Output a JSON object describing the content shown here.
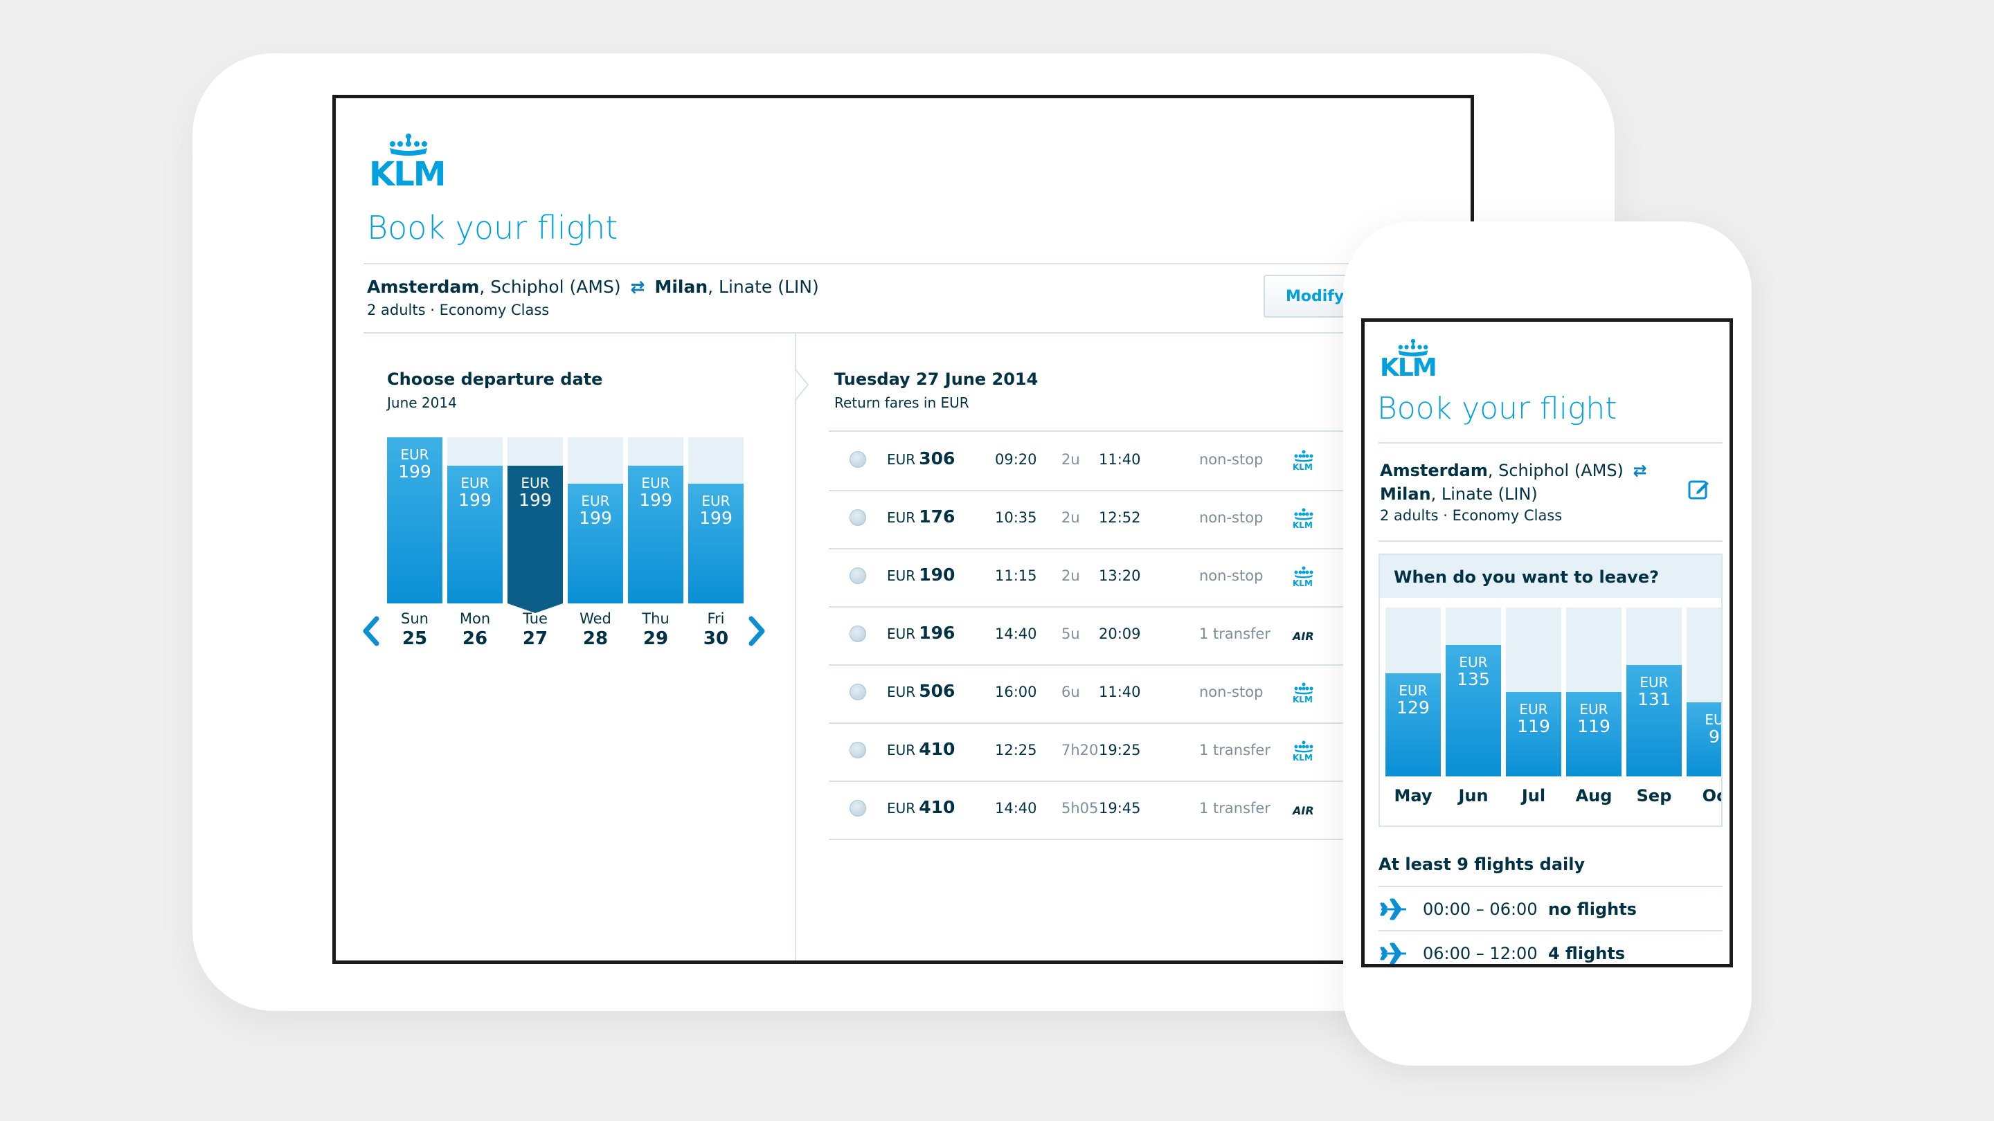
{
  "brand": {
    "logo_text": "KLM",
    "accent": "#00a1de",
    "dark": "#003145",
    "selected": "#0b5e87"
  },
  "tablet": {
    "title": "Book your flight",
    "route": {
      "from_city": "Amsterdam",
      "from_airport": ", Schiphol (AMS)",
      "to_city": "Milan",
      "to_airport": ", Linate (LIN)"
    },
    "passengers": "2 adults · Economy Class",
    "modify_label": "Modify s",
    "departure": {
      "title": "Choose departure date",
      "month": "June 2014",
      "days": [
        {
          "name": "Sun",
          "date": "25",
          "currency": "EUR",
          "amount": "199",
          "fill": 1.0,
          "selected": false
        },
        {
          "name": "Mon",
          "date": "26",
          "currency": "EUR",
          "amount": "199",
          "fill": 0.83,
          "selected": false
        },
        {
          "name": "Tue",
          "date": "27",
          "currency": "EUR",
          "amount": "199",
          "fill": 0.83,
          "selected": true
        },
        {
          "name": "Wed",
          "date": "28",
          "currency": "EUR",
          "amount": "199",
          "fill": 0.72,
          "selected": false
        },
        {
          "name": "Thu",
          "date": "29",
          "currency": "EUR",
          "amount": "199",
          "fill": 0.83,
          "selected": false
        },
        {
          "name": "Fri",
          "date": "30",
          "currency": "EUR",
          "amount": "199",
          "fill": 0.72,
          "selected": false
        }
      ]
    },
    "results": {
      "title": "Tuesday 27 June 2014",
      "subtitle": "Return fares in EUR",
      "rows": [
        {
          "currency": "EUR",
          "amount": "306",
          "depart": "09:20",
          "duration": "2u",
          "arrive": "11:40",
          "stops": "non-stop",
          "carrier": "KLM"
        },
        {
          "currency": "EUR",
          "amount": "176",
          "depart": "10:35",
          "duration": "2u",
          "arrive": "12:52",
          "stops": "non-stop",
          "carrier": "KLM"
        },
        {
          "currency": "EUR",
          "amount": "190",
          "depart": "11:15",
          "duration": "2u",
          "arrive": "13:20",
          "stops": "non-stop",
          "carrier": "KLM"
        },
        {
          "currency": "EUR",
          "amount": "196",
          "depart": "14:40",
          "duration": "5u",
          "arrive": "20:09",
          "stops": "1 transfer",
          "carrier": "AIR"
        },
        {
          "currency": "EUR",
          "amount": "506",
          "depart": "16:00",
          "duration": "6u",
          "arrive": "11:40",
          "stops": "non-stop",
          "carrier": "KLM"
        },
        {
          "currency": "EUR",
          "amount": "410",
          "depart": "12:25",
          "duration": "7h20",
          "arrive": "19:25",
          "stops": "1 transfer",
          "carrier": "KLM"
        },
        {
          "currency": "EUR",
          "amount": "410",
          "depart": "14:40",
          "duration": "5h05",
          "arrive": "19:45",
          "stops": "1 transfer",
          "carrier": "AIR"
        }
      ]
    }
  },
  "phone": {
    "title": "Book your flight",
    "route": {
      "from_city": "Amsterdam",
      "from_airport": ", Schiphol (AMS)",
      "to_city": "Milan",
      "to_airport": ", Linate (LIN)"
    },
    "passengers": "2 adults · Economy Class",
    "chart_title": "When do you want to leave?",
    "months": [
      {
        "name": "May",
        "currency": "EUR",
        "amount": "129",
        "fill": 0.61
      },
      {
        "name": "Jun",
        "currency": "EUR",
        "amount": "135",
        "fill": 0.78
      },
      {
        "name": "Jul",
        "currency": "EUR",
        "amount": "119",
        "fill": 0.5
      },
      {
        "name": "Aug",
        "currency": "EUR",
        "amount": "119",
        "fill": 0.5
      },
      {
        "name": "Sep",
        "currency": "EUR",
        "amount": "131",
        "fill": 0.66
      },
      {
        "name": "Oc",
        "currency": "EU",
        "amount": "9",
        "fill": 0.44
      }
    ],
    "flights_title": "At least 9 flights daily",
    "flight_slots": [
      {
        "range": "00:00 – 06:00",
        "count": "no flights"
      },
      {
        "range": "06:00 – 12:00",
        "count": "4 flights"
      }
    ]
  }
}
